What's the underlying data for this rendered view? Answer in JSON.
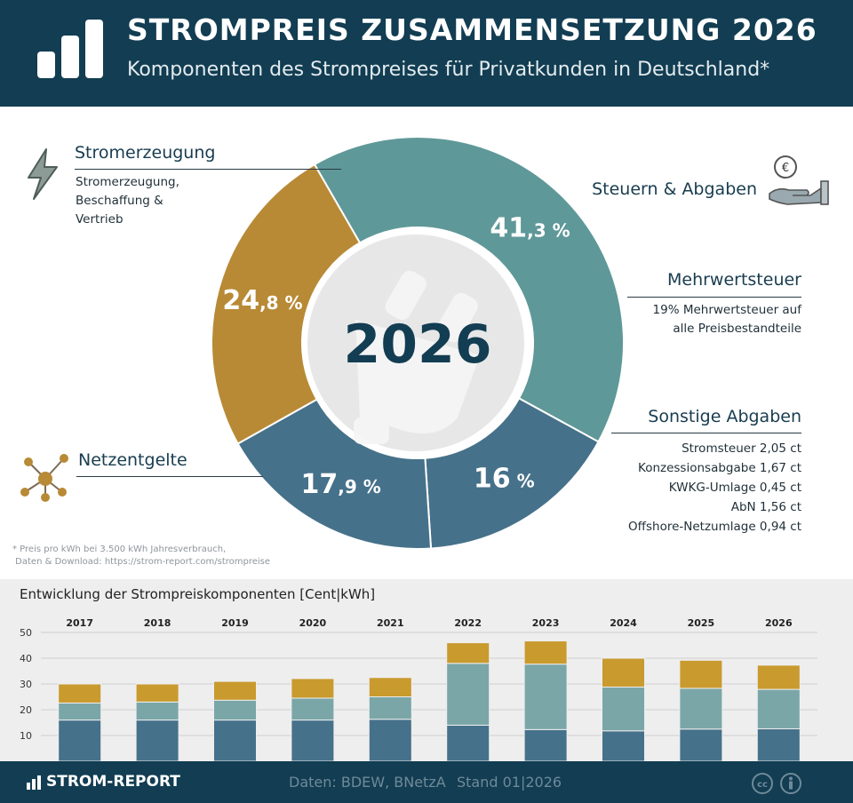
{
  "header": {
    "title": "STROMPREIS ZUSAMMENSETZUNG 2026",
    "subtitle": "Komponenten des Strompreises für Privatkunden in Deutschland*"
  },
  "donut": {
    "center_label": "2026",
    "segments": [
      {
        "name": "Stromerzeugung",
        "percent": 41.3,
        "label_int": "41",
        "label_dec": ",3 %",
        "color": "#5f9898"
      },
      {
        "name": "Mehrwertsteuer",
        "percent": 16.0,
        "label_int": "16",
        "label_dec": " %",
        "color": "#46718a"
      },
      {
        "name": "Sonstige Abgaben",
        "percent": 17.9,
        "label_int": "17",
        "label_dec": ",9 %",
        "color": "#46718a"
      },
      {
        "name": "Netzentgelte",
        "percent": 24.8,
        "label_int": "24",
        "label_dec": ",8 %",
        "color": "#b88a36"
      }
    ]
  },
  "labels": {
    "stromerzeugung_title": "Stromerzeugung",
    "stromerzeugung_desc": [
      "Stromerzeugung,",
      "Beschaffung &",
      "Vertrieb"
    ],
    "steuern_title": "Steuern & Abgaben",
    "mwst_title": "Mehrwertsteuer",
    "mwst_desc": [
      "19% Mehrwertsteuer auf",
      "alle Preisbestandteile"
    ],
    "sonstige_title": "Sonstige Abgaben",
    "sonstige_desc": [
      "Stromsteuer 2,05 ct",
      "Konzessionsabgabe 1,67 ct",
      "KWKG-Umlage 0,45 ct",
      "AbN 1,56 ct",
      "Offshore-Netzumlage 0,94 ct"
    ],
    "netz_title": "Netzentgelte"
  },
  "footnote": [
    "* Preis pro kWh bei 3.500 kWh Jahresverbrauch,",
    " Daten & Download: https://strom-report.com/strompreise"
  ],
  "chart_data": {
    "type": "bar",
    "stacked": true,
    "title": "Entwicklung der Strompreiskomponenten [Cent|kWh]",
    "categories": [
      "2017",
      "2018",
      "2019",
      "2020",
      "2021",
      "2022",
      "2023",
      "2024",
      "2025",
      "2026"
    ],
    "series": [
      {
        "values": [
          16.0,
          16.0,
          16.0,
          16.0,
          16.3,
          14.0,
          12.3,
          11.8,
          12.5,
          12.6
        ],
        "color": "#46718a"
      },
      {
        "values": [
          6.6,
          7.0,
          7.7,
          8.5,
          8.7,
          24.0,
          25.4,
          17.0,
          15.8,
          15.3
        ],
        "color": "#7aa6a8"
      },
      {
        "values": [
          7.4,
          7.0,
          7.3,
          7.6,
          7.5,
          8.0,
          9.0,
          11.2,
          10.9,
          9.4
        ],
        "color": "#c99a2e"
      }
    ],
    "ylim": [
      0,
      50
    ],
    "yticks": [
      10,
      20,
      30,
      40,
      50
    ],
    "grid": true
  },
  "footer": {
    "brand": "STROM-REPORT",
    "source": "Daten: BDEW, BNetzA",
    "stand": "Stand 01|2026"
  },
  "icons": [
    "bar-chart-logo-icon",
    "lightning-icon",
    "euro-hand-icon",
    "network-icon",
    "plug-icon",
    "cc-icon",
    "by-attribution-icon"
  ]
}
